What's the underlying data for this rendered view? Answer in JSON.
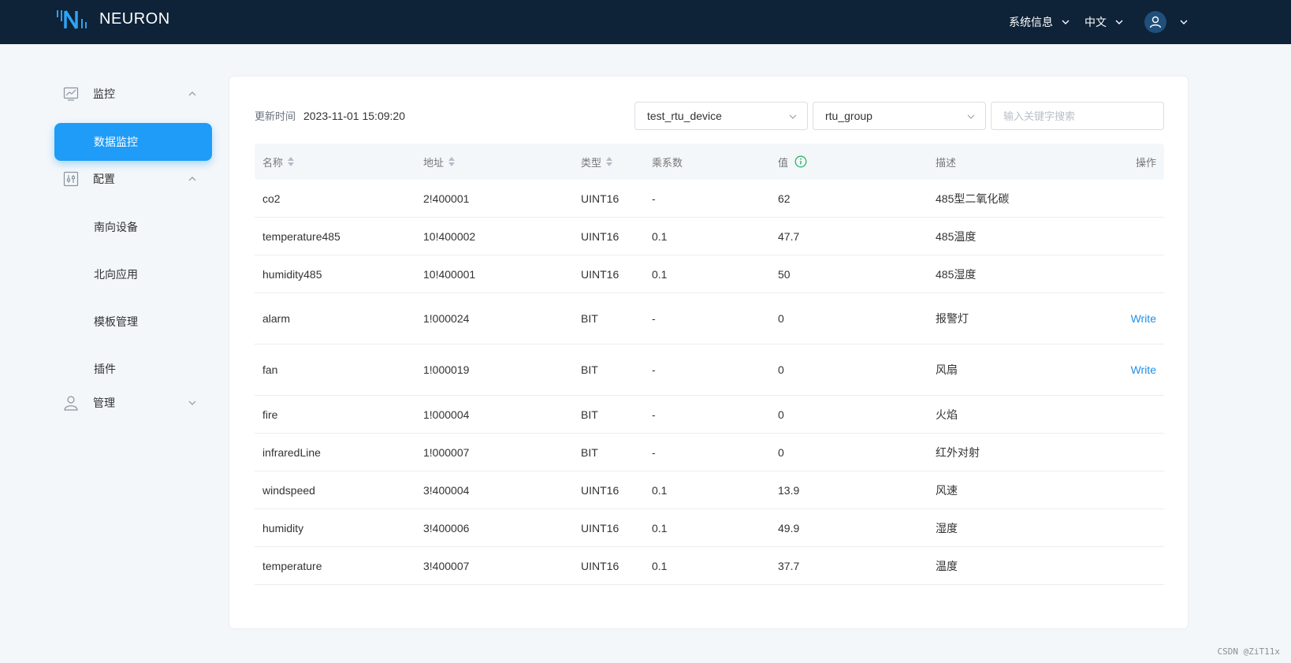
{
  "header": {
    "app_name": "NEURON",
    "system_info": "系统信息",
    "language": "中文"
  },
  "sidebar": {
    "groups": [
      {
        "label": "监控",
        "icon": "monitor-chart-icon",
        "expanded": true
      },
      {
        "label": "配置",
        "icon": "config-sliders-icon",
        "expanded": true
      },
      {
        "label": "管理",
        "icon": "user-admin-icon",
        "expanded": false
      }
    ],
    "items": [
      {
        "label": "数据监控",
        "active": true
      },
      {
        "label": "南向设备"
      },
      {
        "label": "北向应用"
      },
      {
        "label": "模板管理"
      },
      {
        "label": "插件"
      }
    ]
  },
  "toolbar": {
    "update_label": "更新时间",
    "update_time": "2023-11-01 15:09:20",
    "device_select": "test_rtu_device",
    "group_select": "rtu_group",
    "search_placeholder": "输入关键字搜索"
  },
  "table": {
    "headers": {
      "name": "名称",
      "address": "地址",
      "type": "类型",
      "multiplier": "乘系数",
      "value": "值",
      "description": "描述",
      "action": "操作"
    },
    "rows": [
      {
        "name": "co2",
        "address": "2!400001",
        "type": "UINT16",
        "multiplier": "-",
        "value": "62",
        "description": "485型二氧化碳",
        "action": ""
      },
      {
        "name": "temperature485",
        "address": "10!400002",
        "type": "UINT16",
        "multiplier": "0.1",
        "value": "47.7",
        "description": "485温度",
        "action": ""
      },
      {
        "name": "humidity485",
        "address": "10!400001",
        "type": "UINT16",
        "multiplier": "0.1",
        "value": "50",
        "description": "485湿度",
        "action": ""
      },
      {
        "name": "alarm",
        "address": "1!000024",
        "type": "BIT",
        "multiplier": "-",
        "value": "0",
        "description": "报警灯",
        "action": "Write"
      },
      {
        "name": "fan",
        "address": "1!000019",
        "type": "BIT",
        "multiplier": "-",
        "value": "0",
        "description": "风扇",
        "action": "Write"
      },
      {
        "name": "fire",
        "address": "1!000004",
        "type": "BIT",
        "multiplier": "-",
        "value": "0",
        "description": "火焰",
        "action": ""
      },
      {
        "name": "infraredLine",
        "address": "1!000007",
        "type": "BIT",
        "multiplier": "-",
        "value": "0",
        "description": "红外对射",
        "action": ""
      },
      {
        "name": "windspeed",
        "address": "3!400004",
        "type": "UINT16",
        "multiplier": "0.1",
        "value": "13.9",
        "description": "风速",
        "action": ""
      },
      {
        "name": "humidity",
        "address": "3!400006",
        "type": "UINT16",
        "multiplier": "0.1",
        "value": "49.9",
        "description": "湿度",
        "action": ""
      },
      {
        "name": "temperature",
        "address": "3!400007",
        "type": "UINT16",
        "multiplier": "0.1",
        "value": "37.7",
        "description": "温度",
        "action": ""
      }
    ]
  },
  "watermark": "CSDN @ZiT11x",
  "colors": {
    "header_bg": "#0e2238",
    "accent": "#1f9cf7",
    "link": "#1f8fe8",
    "info_green": "#2fb36a"
  }
}
